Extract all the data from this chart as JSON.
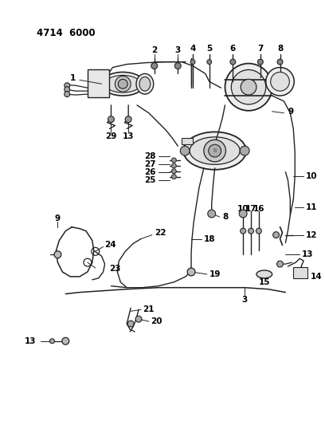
{
  "title": "4714  6000",
  "background_color": "#ffffff",
  "line_color": "#222222",
  "text_color": "#000000",
  "fig_width": 4.08,
  "fig_height": 5.33,
  "dpi": 100
}
